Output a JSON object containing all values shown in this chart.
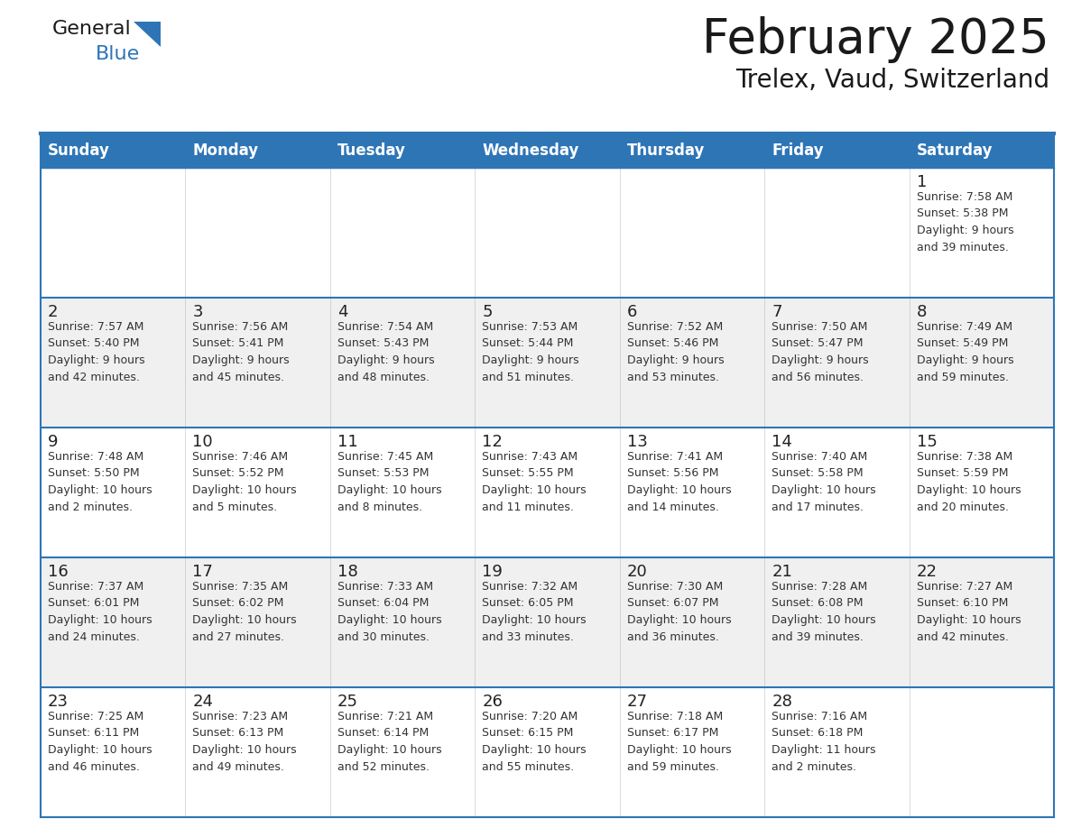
{
  "title": "February 2025",
  "subtitle": "Trelex, Vaud, Switzerland",
  "header_bg": "#2E75B6",
  "header_text_color": "#FFFFFF",
  "cell_bg_white": "#FFFFFF",
  "cell_bg_gray": "#F0F0F0",
  "border_color": "#2E75B6",
  "day_number_color": "#222222",
  "cell_text_color": "#333333",
  "days_of_week": [
    "Sunday",
    "Monday",
    "Tuesday",
    "Wednesday",
    "Thursday",
    "Friday",
    "Saturday"
  ],
  "weeks": [
    [
      {
        "day": "",
        "info": ""
      },
      {
        "day": "",
        "info": ""
      },
      {
        "day": "",
        "info": ""
      },
      {
        "day": "",
        "info": ""
      },
      {
        "day": "",
        "info": ""
      },
      {
        "day": "",
        "info": ""
      },
      {
        "day": "1",
        "info": "Sunrise: 7:58 AM\nSunset: 5:38 PM\nDaylight: 9 hours\nand 39 minutes."
      }
    ],
    [
      {
        "day": "2",
        "info": "Sunrise: 7:57 AM\nSunset: 5:40 PM\nDaylight: 9 hours\nand 42 minutes."
      },
      {
        "day": "3",
        "info": "Sunrise: 7:56 AM\nSunset: 5:41 PM\nDaylight: 9 hours\nand 45 minutes."
      },
      {
        "day": "4",
        "info": "Sunrise: 7:54 AM\nSunset: 5:43 PM\nDaylight: 9 hours\nand 48 minutes."
      },
      {
        "day": "5",
        "info": "Sunrise: 7:53 AM\nSunset: 5:44 PM\nDaylight: 9 hours\nand 51 minutes."
      },
      {
        "day": "6",
        "info": "Sunrise: 7:52 AM\nSunset: 5:46 PM\nDaylight: 9 hours\nand 53 minutes."
      },
      {
        "day": "7",
        "info": "Sunrise: 7:50 AM\nSunset: 5:47 PM\nDaylight: 9 hours\nand 56 minutes."
      },
      {
        "day": "8",
        "info": "Sunrise: 7:49 AM\nSunset: 5:49 PM\nDaylight: 9 hours\nand 59 minutes."
      }
    ],
    [
      {
        "day": "9",
        "info": "Sunrise: 7:48 AM\nSunset: 5:50 PM\nDaylight: 10 hours\nand 2 minutes."
      },
      {
        "day": "10",
        "info": "Sunrise: 7:46 AM\nSunset: 5:52 PM\nDaylight: 10 hours\nand 5 minutes."
      },
      {
        "day": "11",
        "info": "Sunrise: 7:45 AM\nSunset: 5:53 PM\nDaylight: 10 hours\nand 8 minutes."
      },
      {
        "day": "12",
        "info": "Sunrise: 7:43 AM\nSunset: 5:55 PM\nDaylight: 10 hours\nand 11 minutes."
      },
      {
        "day": "13",
        "info": "Sunrise: 7:41 AM\nSunset: 5:56 PM\nDaylight: 10 hours\nand 14 minutes."
      },
      {
        "day": "14",
        "info": "Sunrise: 7:40 AM\nSunset: 5:58 PM\nDaylight: 10 hours\nand 17 minutes."
      },
      {
        "day": "15",
        "info": "Sunrise: 7:38 AM\nSunset: 5:59 PM\nDaylight: 10 hours\nand 20 minutes."
      }
    ],
    [
      {
        "day": "16",
        "info": "Sunrise: 7:37 AM\nSunset: 6:01 PM\nDaylight: 10 hours\nand 24 minutes."
      },
      {
        "day": "17",
        "info": "Sunrise: 7:35 AM\nSunset: 6:02 PM\nDaylight: 10 hours\nand 27 minutes."
      },
      {
        "day": "18",
        "info": "Sunrise: 7:33 AM\nSunset: 6:04 PM\nDaylight: 10 hours\nand 30 minutes."
      },
      {
        "day": "19",
        "info": "Sunrise: 7:32 AM\nSunset: 6:05 PM\nDaylight: 10 hours\nand 33 minutes."
      },
      {
        "day": "20",
        "info": "Sunrise: 7:30 AM\nSunset: 6:07 PM\nDaylight: 10 hours\nand 36 minutes."
      },
      {
        "day": "21",
        "info": "Sunrise: 7:28 AM\nSunset: 6:08 PM\nDaylight: 10 hours\nand 39 minutes."
      },
      {
        "day": "22",
        "info": "Sunrise: 7:27 AM\nSunset: 6:10 PM\nDaylight: 10 hours\nand 42 minutes."
      }
    ],
    [
      {
        "day": "23",
        "info": "Sunrise: 7:25 AM\nSunset: 6:11 PM\nDaylight: 10 hours\nand 46 minutes."
      },
      {
        "day": "24",
        "info": "Sunrise: 7:23 AM\nSunset: 6:13 PM\nDaylight: 10 hours\nand 49 minutes."
      },
      {
        "day": "25",
        "info": "Sunrise: 7:21 AM\nSunset: 6:14 PM\nDaylight: 10 hours\nand 52 minutes."
      },
      {
        "day": "26",
        "info": "Sunrise: 7:20 AM\nSunset: 6:15 PM\nDaylight: 10 hours\nand 55 minutes."
      },
      {
        "day": "27",
        "info": "Sunrise: 7:18 AM\nSunset: 6:17 PM\nDaylight: 10 hours\nand 59 minutes."
      },
      {
        "day": "28",
        "info": "Sunrise: 7:16 AM\nSunset: 6:18 PM\nDaylight: 11 hours\nand 2 minutes."
      },
      {
        "day": "",
        "info": ""
      }
    ]
  ],
  "title_fontsize": 38,
  "subtitle_fontsize": 20,
  "header_day_fontsize": 12,
  "day_num_fontsize": 13,
  "cell_info_fontsize": 9
}
